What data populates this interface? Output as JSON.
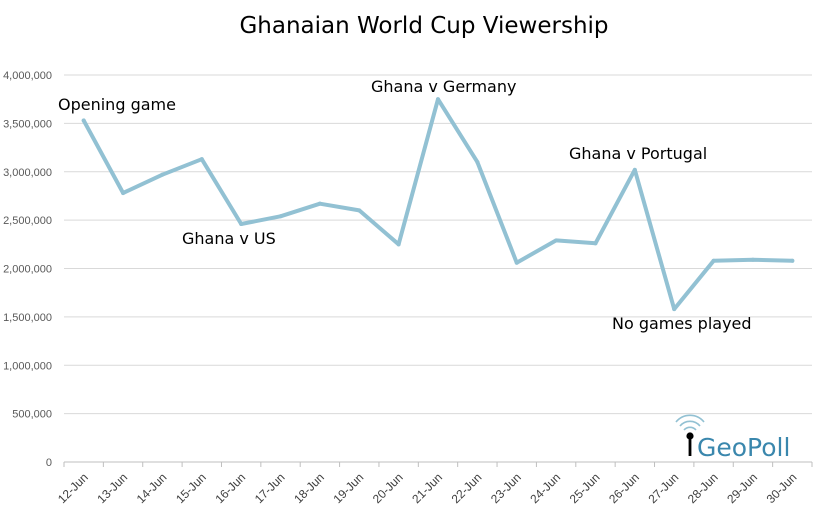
{
  "chart_data": {
    "type": "line",
    "title": "Ghanaian World Cup Viewership",
    "xlabel": "",
    "ylabel": "",
    "categories": [
      "12-Jun",
      "13-Jun",
      "14-Jun",
      "15-Jun",
      "16-Jun",
      "17-Jun",
      "18-Jun",
      "19-Jun",
      "20-Jun",
      "21-Jun",
      "22-Jun",
      "23-Jun",
      "24-Jun",
      "25-Jun",
      "26-Jun",
      "27-Jun",
      "28-Jun",
      "29-Jun",
      "30-Jun"
    ],
    "series": [
      {
        "values": [
          3530000,
          2780000,
          2970000,
          3130000,
          2460000,
          2540000,
          2670000,
          2600000,
          2250000,
          3750000,
          3100000,
          2060000,
          2290000,
          2260000,
          3020000,
          1580000,
          2080000,
          2090000,
          2080000
        ],
        "color": "#92C1D3"
      }
    ],
    "ylim": [
      0,
      4000000
    ],
    "yticks": [
      0,
      500000,
      1000000,
      1500000,
      2000000,
      2500000,
      3000000,
      3500000,
      4000000
    ],
    "ytick_labels": [
      "0",
      "500,000",
      "1,000,000",
      "1,500,000",
      "2,000,000",
      "2,500,000",
      "3,000,000",
      "3,500,000",
      "4,000,000"
    ],
    "grid": true,
    "legend": "none",
    "annotations": [
      {
        "text": "Opening game",
        "category": "12-Jun"
      },
      {
        "text": "Ghana v US",
        "category": "16-Jun"
      },
      {
        "text": "Ghana v Germany",
        "category": "21-Jun"
      },
      {
        "text": "Ghana v Portugal",
        "category": "26-Jun"
      },
      {
        "text": "No games played",
        "category": "27-Jun"
      }
    ]
  },
  "logo": {
    "text": "GeoPoll",
    "text_color": "#3A87AD"
  },
  "colors": {
    "gridline": "#D9D9D9",
    "axis": "#BFBFBF",
    "line": "#92C1D3"
  }
}
